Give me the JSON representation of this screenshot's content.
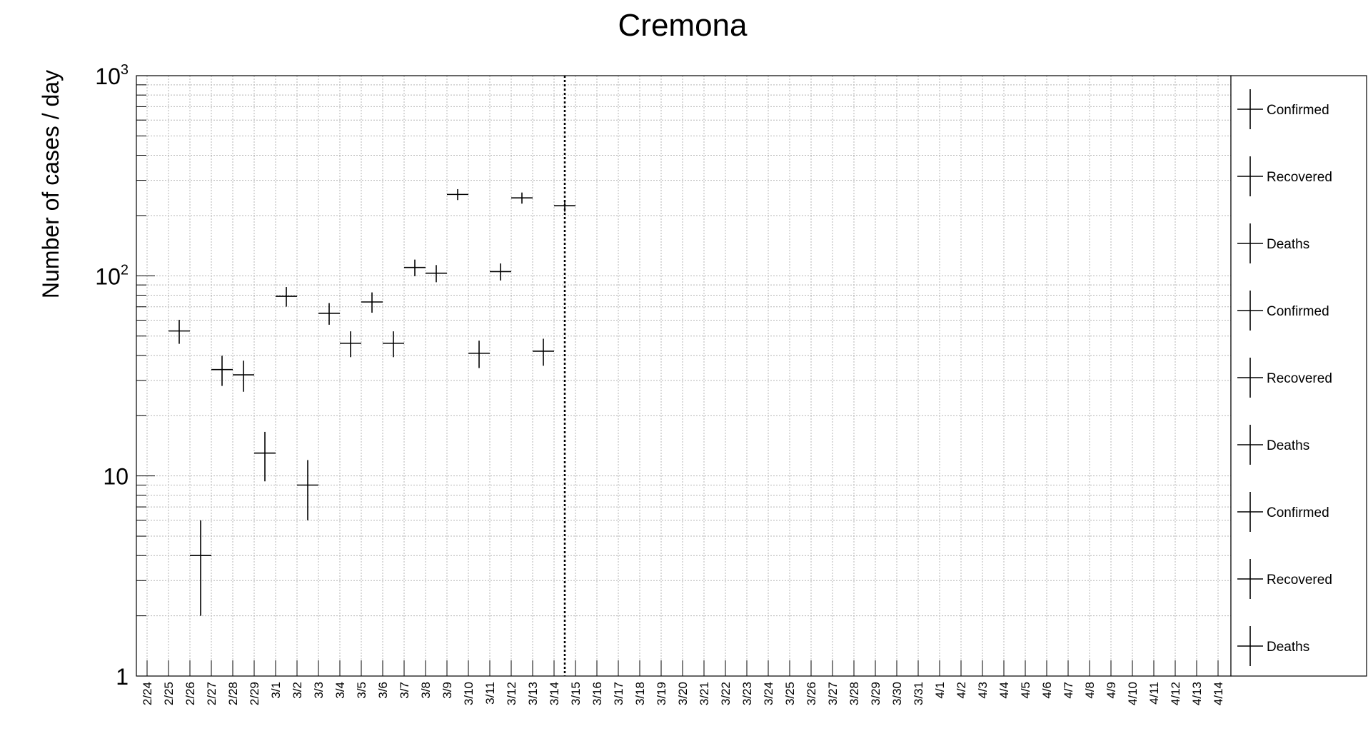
{
  "chart_data": {
    "type": "scatter",
    "title": "Cremona",
    "xlabel": "",
    "ylabel": "Number of cases / day",
    "y_scale": "log",
    "ylim": [
      1,
      1000
    ],
    "grid": true,
    "legend_position": "right",
    "y_ticks": [
      {
        "value": 1,
        "base": "1",
        "exp": ""
      },
      {
        "value": 10,
        "base": "10",
        "exp": ""
      },
      {
        "value": 100,
        "base": "10",
        "exp": "2"
      },
      {
        "value": 1000,
        "base": "10",
        "exp": "3"
      }
    ],
    "categories": [
      "2/24",
      "2/25",
      "2/26",
      "2/27",
      "2/28",
      "2/29",
      "3/1",
      "3/2",
      "3/3",
      "3/4",
      "3/5",
      "3/6",
      "3/7",
      "3/8",
      "3/9",
      "3/10",
      "3/11",
      "3/12",
      "3/13",
      "3/14",
      "3/15",
      "3/16",
      "3/17",
      "3/18",
      "3/19",
      "3/20",
      "3/21",
      "3/22",
      "3/23",
      "3/24",
      "3/25",
      "3/26",
      "3/27",
      "3/28",
      "3/29",
      "3/30",
      "3/31",
      "4/1",
      "4/2",
      "4/3",
      "4/4",
      "4/5",
      "4/6",
      "4/7",
      "4/8",
      "4/9",
      "4/10",
      "4/11",
      "4/12",
      "4/13",
      "4/14"
    ],
    "marker_date": "3/14",
    "series": [
      {
        "name": "Confirmed",
        "x": [
          "2/25",
          "2/26",
          "2/27",
          "2/28",
          "2/29",
          "3/1",
          "3/2",
          "3/3",
          "3/4",
          "3/5",
          "3/6",
          "3/7",
          "3/8",
          "3/9",
          "3/10",
          "3/11",
          "3/12",
          "3/13",
          "3/14"
        ],
        "values": [
          53,
          4,
          34,
          32,
          13,
          79,
          9,
          65,
          46,
          74,
          46,
          110,
          103,
          255,
          41,
          105,
          245,
          42,
          224
        ]
      }
    ],
    "legend": [
      "Confirmed",
      "Recovered",
      "Deaths",
      "Confirmed",
      "Recovered",
      "Deaths",
      "Confirmed",
      "Recovered",
      "Deaths"
    ]
  }
}
